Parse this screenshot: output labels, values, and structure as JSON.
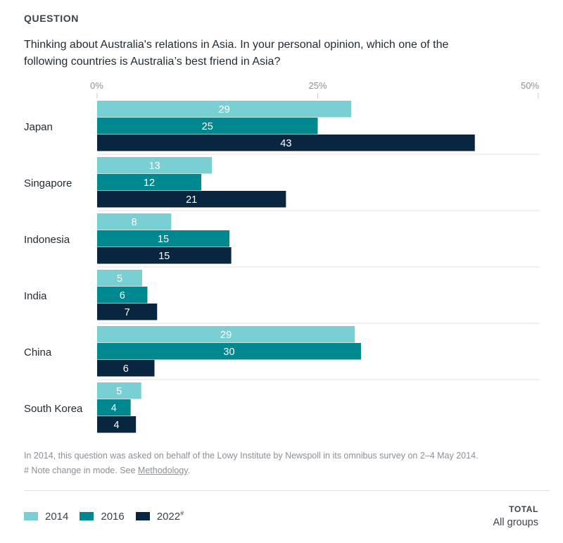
{
  "header": {
    "eyebrow": "QUESTION",
    "question": "Thinking about Australia's relations in Asia. In your personal opinion, which one of the following countries is Australia’s best friend in Asia?"
  },
  "chart_data": {
    "type": "bar",
    "orientation": "horizontal",
    "categories": [
      "Japan",
      "Singapore",
      "Indonesia",
      "India",
      "China",
      "South Korea"
    ],
    "series": [
      {
        "name": "2014",
        "color": "#7acfd3",
        "values": [
          29,
          13,
          8,
          5,
          29,
          5
        ]
      },
      {
        "name": "2016",
        "color": "#008891",
        "values": [
          25,
          12,
          15,
          6,
          30,
          4
        ]
      },
      {
        "name": "2022#",
        "color": "#0a2540",
        "values": [
          43,
          21,
          15,
          7,
          6,
          4
        ]
      }
    ],
    "value_precise": [
      [
        28.8,
        13,
        8.4,
        5.1,
        29.2,
        5
      ],
      [
        25,
        11.8,
        15,
        5.7,
        29.9,
        3.8
      ],
      [
        42.8,
        21.4,
        15.2,
        6.8,
        6.5,
        4.4
      ]
    ],
    "xlim": [
      0,
      50
    ],
    "ticks": [
      "0%",
      "25%",
      "50%"
    ],
    "tick_values": [
      0,
      25,
      50
    ]
  },
  "notes": {
    "line1": "In 2014, this question was asked on behalf of the Lowy Institute by Newspoll in its omnibus survey on 2–4 May 2014.",
    "line2_prefix": "# Note change in mode. See ",
    "methodology_link": "Methodology",
    "line2_suffix": "."
  },
  "legend": [
    {
      "label": "2014",
      "color": "#7acfd3"
    },
    {
      "label": "2016",
      "color": "#008891"
    },
    {
      "label": "2022",
      "sup": "#",
      "color": "#0a2540"
    }
  ],
  "total": {
    "label": "TOTAL",
    "value": "All groups"
  }
}
